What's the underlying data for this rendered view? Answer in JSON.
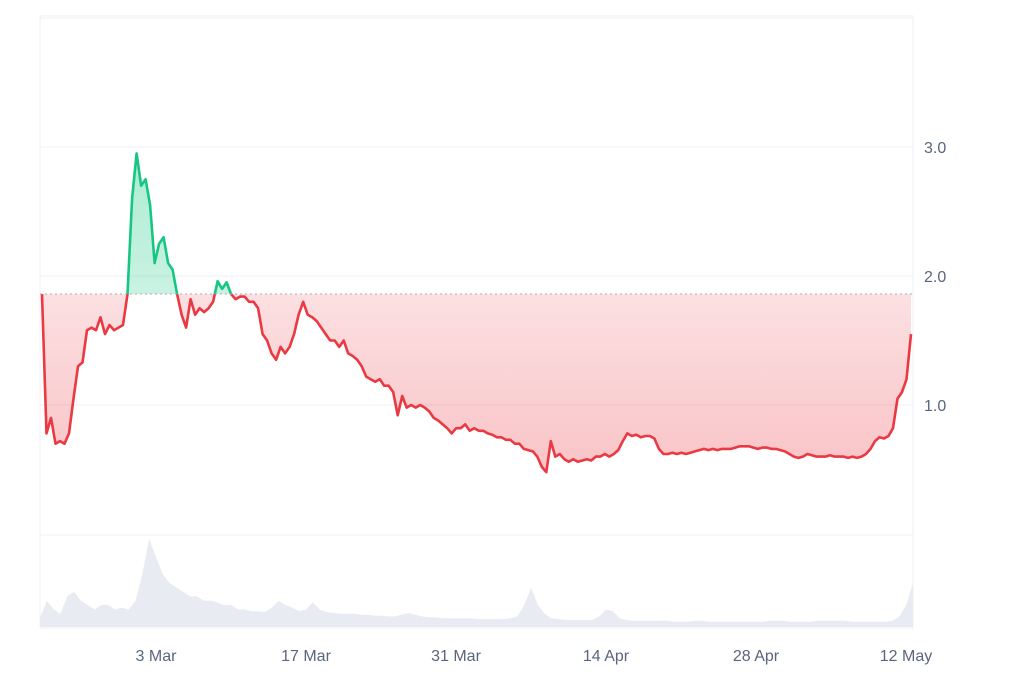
{
  "chart_data": {
    "type": "line",
    "x_tick_labels": [
      "3 Mar",
      "17 Mar",
      "31 Mar",
      "14 Apr",
      "28 Apr",
      "12 May"
    ],
    "y_tick_labels": [
      "1.0",
      "2.0",
      "3.0"
    ],
    "y_ticks": [
      1.0,
      2.0,
      3.0
    ],
    "ylim": [
      0,
      4.0
    ],
    "reference_line": {
      "value": 1.86,
      "style": "dotted"
    },
    "grid": "horizontal",
    "colors": {
      "above": "#16c784",
      "below": "#ea3943",
      "volume": "#e8ecf2",
      "grid": "#eef0f3",
      "reference": "#a8acb3"
    },
    "series": [
      {
        "values": [
          1.86,
          0.78,
          0.9,
          0.7,
          0.72,
          0.7,
          0.78,
          1.05,
          1.3,
          1.33,
          1.58,
          1.6,
          1.58,
          1.68,
          1.55,
          1.62,
          1.58,
          1.6,
          1.62,
          1.86,
          2.6,
          2.95,
          2.7,
          2.75,
          2.55,
          2.1,
          2.25,
          2.3,
          2.1,
          2.05,
          1.86,
          1.7,
          1.6,
          1.82,
          1.7,
          1.75,
          1.72,
          1.75,
          1.8,
          1.96,
          1.9,
          1.95,
          1.86,
          1.82,
          1.84,
          1.84,
          1.8,
          1.8,
          1.75,
          1.55,
          1.5,
          1.4,
          1.35,
          1.45,
          1.4,
          1.45,
          1.55,
          1.7,
          1.8,
          1.7,
          1.68,
          1.65,
          1.6,
          1.55,
          1.5,
          1.5,
          1.45,
          1.5,
          1.4,
          1.38,
          1.35,
          1.3,
          1.22,
          1.2,
          1.18,
          1.2,
          1.15,
          1.15,
          1.1,
          0.92,
          1.07,
          0.98,
          1.0,
          0.98,
          1.0,
          0.98,
          0.95,
          0.9,
          0.88,
          0.85,
          0.82,
          0.78,
          0.82,
          0.82,
          0.85,
          0.8,
          0.82,
          0.8,
          0.8,
          0.78,
          0.77,
          0.75,
          0.75,
          0.73,
          0.73,
          0.7,
          0.7,
          0.66,
          0.65,
          0.64,
          0.6,
          0.52,
          0.48,
          0.72,
          0.6,
          0.62,
          0.58,
          0.56,
          0.58,
          0.56,
          0.57,
          0.58,
          0.57,
          0.6,
          0.6,
          0.62,
          0.6,
          0.62,
          0.65,
          0.72,
          0.78,
          0.76,
          0.77,
          0.75,
          0.76,
          0.76,
          0.74,
          0.66,
          0.62,
          0.62,
          0.63,
          0.62,
          0.63,
          0.62,
          0.63,
          0.64,
          0.65,
          0.66,
          0.65,
          0.66,
          0.65,
          0.66,
          0.66,
          0.66,
          0.67,
          0.68,
          0.68,
          0.68,
          0.67,
          0.66,
          0.67,
          0.67,
          0.66,
          0.66,
          0.65,
          0.64,
          0.62,
          0.6,
          0.59,
          0.6,
          0.62,
          0.61,
          0.6,
          0.6,
          0.6,
          0.61,
          0.6,
          0.6,
          0.6,
          0.59,
          0.6,
          0.59,
          0.6,
          0.62,
          0.66,
          0.72,
          0.75,
          0.74,
          0.76,
          0.82,
          1.05,
          1.1,
          1.2,
          1.55
        ]
      }
    ],
    "volume": [
      0.1,
      0.3,
      0.2,
      0.15,
      0.35,
      0.4,
      0.3,
      0.25,
      0.2,
      0.25,
      0.25,
      0.2,
      0.22,
      0.2,
      0.3,
      0.6,
      1.0,
      0.8,
      0.6,
      0.5,
      0.45,
      0.4,
      0.35,
      0.35,
      0.3,
      0.3,
      0.28,
      0.25,
      0.25,
      0.2,
      0.2,
      0.18,
      0.18,
      0.17,
      0.22,
      0.3,
      0.25,
      0.22,
      0.18,
      0.2,
      0.28,
      0.2,
      0.17,
      0.16,
      0.15,
      0.15,
      0.15,
      0.14,
      0.14,
      0.13,
      0.13,
      0.12,
      0.12,
      0.14,
      0.16,
      0.14,
      0.12,
      0.11,
      0.11,
      0.1,
      0.1,
      0.1,
      0.1,
      0.1,
      0.09,
      0.09,
      0.09,
      0.09,
      0.09,
      0.1,
      0.12,
      0.25,
      0.45,
      0.25,
      0.15,
      0.1,
      0.09,
      0.08,
      0.08,
      0.08,
      0.08,
      0.08,
      0.12,
      0.2,
      0.18,
      0.1,
      0.08,
      0.07,
      0.07,
      0.07,
      0.07,
      0.07,
      0.07,
      0.06,
      0.06,
      0.06,
      0.07,
      0.07,
      0.06,
      0.06,
      0.06,
      0.06,
      0.06,
      0.06,
      0.06,
      0.06,
      0.06,
      0.07,
      0.07,
      0.07,
      0.06,
      0.06,
      0.06,
      0.06,
      0.07,
      0.07,
      0.07,
      0.07,
      0.07,
      0.06,
      0.06,
      0.06,
      0.06,
      0.06,
      0.06,
      0.07,
      0.12,
      0.25,
      0.5
    ]
  }
}
